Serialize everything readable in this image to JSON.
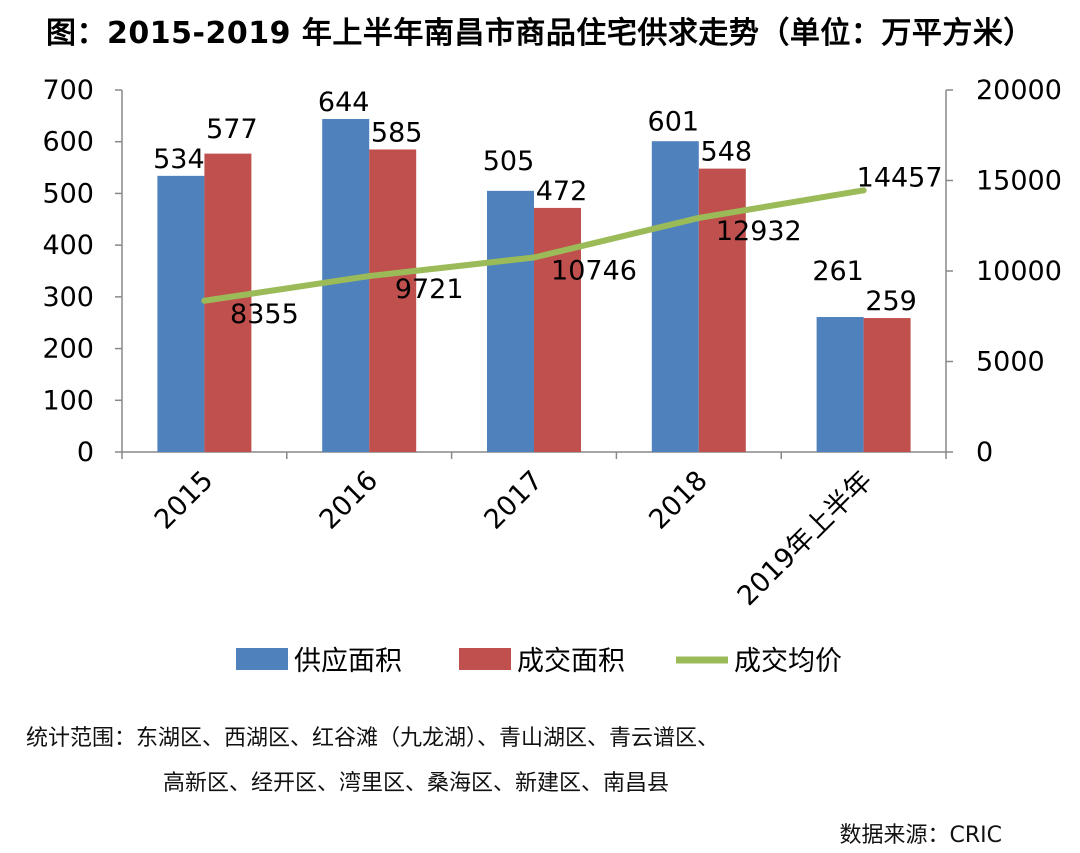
{
  "chart_data": {
    "type": "bar",
    "title": "图：2015-2019 年上半年南昌市商品住宅供求走势（单位：万平方米）",
    "categories": [
      "2015",
      "2016",
      "2017",
      "2018",
      "2019年上半年"
    ],
    "series": [
      {
        "name": "供应面积",
        "type": "bar",
        "axis": "left",
        "color": "#4F81BD",
        "values": [
          534,
          644,
          505,
          601,
          261
        ]
      },
      {
        "name": "成交面积",
        "type": "bar",
        "axis": "left",
        "color": "#C0504D",
        "values": [
          577,
          585,
          472,
          548,
          259
        ]
      },
      {
        "name": "成交均价",
        "type": "line",
        "axis": "right",
        "color": "#9BBB59",
        "values": [
          8355,
          9721,
          10746,
          12932,
          14457
        ]
      }
    ],
    "y_left": {
      "min": 0,
      "max": 700,
      "ticks": [
        0,
        100,
        200,
        300,
        400,
        500,
        600,
        700
      ]
    },
    "y_right": {
      "min": 0,
      "max": 20000,
      "ticks": [
        0,
        5000,
        10000,
        15000,
        20000
      ]
    },
    "grid": false,
    "legend_position": "bottom"
  },
  "footnote": {
    "line1": "统计范围：东湖区、西湖区、红谷滩（九龙湖）、青山湖区、青云谱区、",
    "line2": "高新区、经开区、湾里区、桑海区、新建区、南昌县"
  },
  "source": "数据来源：CRIC"
}
